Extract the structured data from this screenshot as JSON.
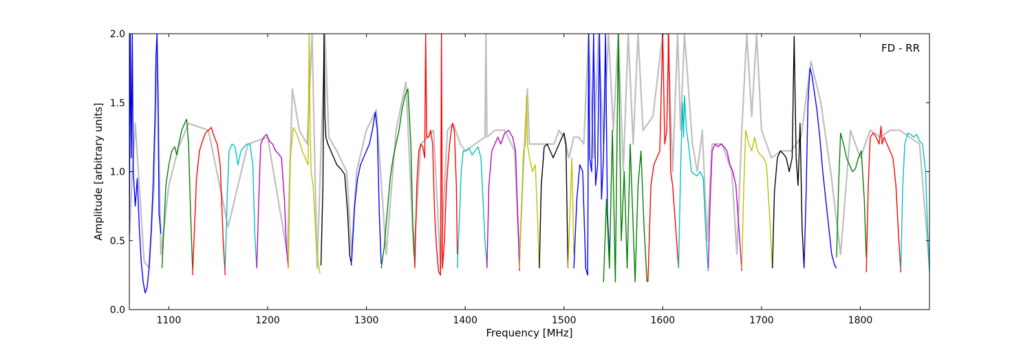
{
  "chart_data": {
    "type": "line",
    "title": "",
    "xlabel": "Frequency [MHz]",
    "ylabel": "Amplitude [arbitrary units]",
    "annotation": "FD - RR",
    "xlim": [
      1060,
      1870
    ],
    "ylim": [
      0.0,
      2.0
    ],
    "xticks": [
      1100,
      1200,
      1300,
      1400,
      1500,
      1600,
      1700,
      1800
    ],
    "xtick_labels": [
      "1100",
      "1200",
      "1300",
      "1400",
      "1500",
      "1600",
      "1700",
      "1800"
    ],
    "yticks": [
      0.0,
      0.5,
      1.0,
      1.5,
      2.0
    ],
    "ytick_labels": [
      "0.0",
      "0.5",
      "1.0",
      "1.5",
      "2.0"
    ],
    "grid": false,
    "legend": "none",
    "background_series": {
      "color": "#bfbfbf",
      "x": [
        1060,
        1063,
        1066,
        1070,
        1075,
        1080,
        1085,
        1088,
        1092,
        1100,
        1110,
        1120,
        1140,
        1160,
        1180,
        1200,
        1220,
        1225,
        1232,
        1240,
        1245,
        1250,
        1258,
        1262,
        1270,
        1280,
        1285,
        1290,
        1300,
        1310,
        1320,
        1330,
        1340,
        1348,
        1355,
        1362,
        1368,
        1375,
        1382,
        1388,
        1395,
        1400,
        1410,
        1420,
        1421,
        1422,
        1430,
        1440,
        1450,
        1455,
        1460,
        1463,
        1465,
        1470,
        1480,
        1490,
        1495,
        1500,
        1505,
        1510,
        1515,
        1520,
        1525,
        1530,
        1535,
        1540,
        1545,
        1550,
        1555,
        1560,
        1565,
        1570,
        1575,
        1580,
        1590,
        1600,
        1605,
        1610,
        1615,
        1618,
        1622,
        1626,
        1630,
        1635,
        1640,
        1645,
        1650,
        1660,
        1670,
        1675,
        1680,
        1685,
        1690,
        1695,
        1700,
        1710,
        1720,
        1730,
        1740,
        1750,
        1760,
        1770,
        1780,
        1790,
        1800,
        1810,
        1820,
        1830,
        1840,
        1850,
        1860,
        1870
      ],
      "y": [
        0.5,
        1.0,
        1.35,
        0.9,
        0.35,
        0.3,
        0.9,
        1.9,
        0.4,
        0.9,
        1.18,
        1.35,
        1.3,
        0.6,
        1.2,
        1.25,
        0.4,
        1.6,
        1.3,
        1.2,
        2.0,
        0.3,
        2.0,
        1.25,
        1.15,
        1.0,
        0.4,
        1.0,
        1.3,
        1.45,
        0.4,
        1.3,
        1.65,
        0.4,
        1.2,
        1.25,
        1.3,
        0.3,
        1.3,
        1.35,
        1.2,
        1.15,
        1.2,
        1.25,
        2.0,
        1.25,
        1.3,
        1.3,
        1.15,
        0.4,
        1.2,
        1.6,
        1.2,
        1.2,
        1.2,
        1.2,
        1.3,
        1.25,
        1.1,
        1.25,
        1.25,
        1.2,
        2.0,
        1.1,
        2.0,
        1.2,
        2.0,
        1.3,
        2.0,
        1.0,
        2.0,
        1.2,
        2.0,
        1.3,
        1.4,
        2.0,
        2.0,
        1.0,
        2.0,
        1.3,
        2.0,
        1.6,
        1.2,
        1.0,
        1.3,
        0.5,
        1.2,
        1.2,
        1.0,
        0.4,
        1.3,
        2.0,
        1.4,
        2.0,
        1.3,
        1.1,
        1.15,
        1.15,
        1.25,
        1.8,
        1.5,
        1.0,
        0.4,
        1.3,
        1.1,
        1.3,
        1.25,
        1.3,
        1.3,
        1.25,
        1.2,
        0.3
      ]
    },
    "series": [
      {
        "color": "#0000ff",
        "x": [
          1060,
          1061,
          1062,
          1063,
          1064,
          1066,
          1068,
          1070,
          1072,
          1074,
          1076,
          1078,
          1080,
          1082,
          1084,
          1086,
          1087,
          1088,
          1089,
          1090,
          1092
        ],
        "y": [
          0.55,
          2.0,
          1.1,
          2.0,
          1.0,
          0.75,
          0.95,
          0.6,
          0.35,
          0.2,
          0.12,
          0.16,
          0.3,
          0.55,
          0.9,
          1.4,
          1.85,
          2.0,
          1.6,
          0.7,
          0.55
        ]
      },
      {
        "color": "#008000",
        "x": [
          1093,
          1095,
          1097,
          1100,
          1103,
          1106,
          1108,
          1110,
          1113,
          1116,
          1118,
          1120,
          1122,
          1124
        ],
        "y": [
          0.3,
          0.6,
          0.9,
          1.05,
          1.15,
          1.18,
          1.12,
          1.2,
          1.3,
          1.35,
          1.38,
          1.2,
          0.7,
          0.3
        ]
      },
      {
        "color": "#ff0000",
        "x": [
          1124,
          1126,
          1128,
          1131,
          1134,
          1137,
          1140,
          1143,
          1146,
          1149,
          1152,
          1155,
          1157
        ],
        "y": [
          0.25,
          0.6,
          0.95,
          1.15,
          1.22,
          1.28,
          1.3,
          1.32,
          1.25,
          1.2,
          1.05,
          0.5,
          0.25
        ]
      },
      {
        "color": "#00bfbf",
        "x": [
          1157,
          1159,
          1161,
          1164,
          1167,
          1170,
          1173,
          1176,
          1179,
          1182,
          1185,
          1187,
          1189
        ],
        "y": [
          0.3,
          0.8,
          1.15,
          1.2,
          1.18,
          1.05,
          1.15,
          1.18,
          1.2,
          1.2,
          1.05,
          0.55,
          0.3
        ]
      },
      {
        "color": "#bf00bf",
        "x": [
          1189,
          1191,
          1193,
          1196,
          1199,
          1202,
          1205,
          1208,
          1211,
          1214,
          1217,
          1219,
          1221
        ],
        "y": [
          0.3,
          0.8,
          1.2,
          1.25,
          1.27,
          1.22,
          1.2,
          1.15,
          1.13,
          1.1,
          0.8,
          0.45,
          0.3
        ]
      },
      {
        "color": "#bfbf00",
        "x": [
          1221,
          1223,
          1226,
          1229,
          1232,
          1235,
          1238,
          1241,
          1242,
          1243,
          1244,
          1246,
          1249,
          1251,
          1253
        ],
        "y": [
          0.3,
          1.1,
          1.32,
          1.28,
          1.22,
          1.15,
          1.1,
          1.05,
          2.0,
          1.3,
          1.0,
          0.9,
          0.5,
          0.35,
          0.26
        ]
      },
      {
        "color": "#000000",
        "x": [
          1254,
          1256,
          1257,
          1258,
          1259,
          1261,
          1264,
          1267,
          1270,
          1274,
          1278,
          1281,
          1283,
          1285
        ],
        "y": [
          0.32,
          0.9,
          2.0,
          1.4,
          1.25,
          1.2,
          1.15,
          1.1,
          1.05,
          1.02,
          0.98,
          0.7,
          0.4,
          0.32
        ]
      },
      {
        "color": "#0000ff",
        "x": [
          1285,
          1288,
          1291,
          1294,
          1297,
          1300,
          1303,
          1306,
          1309,
          1311,
          1313,
          1315
        ],
        "y": [
          0.35,
          0.75,
          0.95,
          1.05,
          1.1,
          1.15,
          1.2,
          1.3,
          1.43,
          1.3,
          0.7,
          0.33
        ]
      },
      {
        "color": "#008000",
        "x": [
          1315,
          1318,
          1321,
          1324,
          1327,
          1330,
          1333,
          1336,
          1339,
          1342,
          1345,
          1347,
          1349
        ],
        "y": [
          0.3,
          0.45,
          0.7,
          0.95,
          1.1,
          1.2,
          1.3,
          1.45,
          1.55,
          1.6,
          1.2,
          0.6,
          0.32
        ]
      },
      {
        "color": "#ff0000",
        "x": [
          1349,
          1351,
          1353,
          1355,
          1357,
          1359,
          1360,
          1361,
          1363,
          1365,
          1367,
          1369,
          1371,
          1373,
          1375,
          1376,
          1377,
          1379,
          1381,
          1383,
          1385,
          1387,
          1389,
          1391,
          1392
        ],
        "y": [
          0.3,
          0.9,
          1.15,
          1.2,
          1.18,
          1.1,
          2.0,
          1.25,
          1.25,
          1.3,
          1.2,
          0.7,
          0.45,
          0.28,
          0.25,
          2.0,
          0.3,
          0.5,
          0.9,
          1.1,
          1.25,
          1.35,
          1.3,
          0.9,
          0.4
        ]
      },
      {
        "color": "#00bfbf",
        "x": [
          1392,
          1394,
          1396,
          1398,
          1401,
          1404,
          1407,
          1410,
          1413,
          1416,
          1418,
          1420,
          1422
        ],
        "y": [
          0.3,
          0.65,
          1.0,
          1.15,
          1.15,
          1.17,
          1.12,
          1.15,
          1.18,
          1.1,
          0.8,
          0.5,
          0.32
        ]
      },
      {
        "color": "#bf00bf",
        "x": [
          1422,
          1424,
          1427,
          1430,
          1433,
          1436,
          1440,
          1444,
          1448,
          1451,
          1453,
          1455
        ],
        "y": [
          0.3,
          0.9,
          1.15,
          1.2,
          1.25,
          1.2,
          1.28,
          1.3,
          1.25,
          1.15,
          0.7,
          0.28
        ]
      },
      {
        "color": "#bfbf00",
        "x": [
          1455,
          1457,
          1459,
          1461,
          1462,
          1463,
          1465,
          1468,
          1471,
          1473,
          1475
        ],
        "y": [
          0.3,
          0.75,
          1.15,
          1.2,
          1.55,
          1.2,
          1.1,
          1.0,
          1.05,
          0.7,
          0.3
        ]
      },
      {
        "color": "#000000",
        "x": [
          1475,
          1477,
          1480,
          1483,
          1486,
          1489,
          1492,
          1495,
          1498,
          1500,
          1502,
          1504
        ],
        "y": [
          0.3,
          0.9,
          1.18,
          1.2,
          1.15,
          1.1,
          1.15,
          1.2,
          1.25,
          1.28,
          1.2,
          0.3
        ]
      },
      {
        "color": "#bfbf00",
        "x": [
          1504,
          1506,
          1508,
          1510
        ],
        "y": [
          0.3,
          0.7,
          1.1,
          0.4
        ]
      },
      {
        "color": "#0000ff",
        "x": [
          1510,
          1513,
          1516,
          1519,
          1522,
          1524,
          1525,
          1526,
          1528,
          1530,
          1532,
          1534,
          1536,
          1538,
          1540,
          1542,
          1544,
          1546
        ],
        "y": [
          0.3,
          0.8,
          1.05,
          1.0,
          0.3,
          0.25,
          2.0,
          1.1,
          1.0,
          2.0,
          0.9,
          1.05,
          2.0,
          0.8,
          1.1,
          2.0,
          0.7,
          0.4
        ]
      },
      {
        "color": "#008000",
        "x": [
          1540,
          1543,
          1546,
          1549,
          1552,
          1555,
          1558,
          1561,
          1564,
          1567,
          1570,
          1572,
          1575,
          1578,
          1581,
          1584
        ],
        "y": [
          0.2,
          0.8,
          0.3,
          1.3,
          0.2,
          2.0,
          0.5,
          1.0,
          0.3,
          1.2,
          0.6,
          0.2,
          0.9,
          1.15,
          0.6,
          0.2
        ]
      },
      {
        "color": "#ff0000",
        "x": [
          1585,
          1588,
          1591,
          1594,
          1597,
          1600,
          1602,
          1604,
          1606,
          1608,
          1610,
          1613,
          1616
        ],
        "y": [
          0.2,
          0.9,
          1.05,
          1.1,
          1.15,
          2.0,
          1.2,
          1.3,
          2.0,
          1.0,
          0.9,
          0.6,
          0.3
        ]
      },
      {
        "color": "#00bfbf",
        "x": [
          1616,
          1618,
          1620,
          1621,
          1622,
          1624,
          1626,
          1629,
          1632,
          1635,
          1638,
          1641,
          1644,
          1646
        ],
        "y": [
          0.3,
          1.0,
          1.5,
          1.25,
          1.55,
          1.3,
          1.2,
          1.0,
          0.98,
          0.97,
          1.0,
          0.95,
          0.5,
          0.28
        ]
      },
      {
        "color": "#bf00bf",
        "x": [
          1646,
          1648,
          1650,
          1653,
          1656,
          1659,
          1662,
          1665,
          1668,
          1671,
          1674,
          1677,
          1680
        ],
        "y": [
          0.3,
          0.8,
          1.15,
          1.2,
          1.18,
          1.2,
          1.18,
          1.15,
          1.05,
          1.0,
          0.9,
          0.6,
          0.28
        ]
      },
      {
        "color": "#bfbf00",
        "x": [
          1680,
          1682,
          1684,
          1687,
          1690,
          1693,
          1696,
          1699,
          1702,
          1705,
          1708,
          1711
        ],
        "y": [
          0.3,
          0.9,
          1.3,
          1.2,
          1.15,
          1.25,
          1.15,
          1.12,
          1.1,
          1.05,
          0.7,
          0.3
        ]
      },
      {
        "color": "#000000",
        "x": [
          1711,
          1713,
          1716,
          1719,
          1722,
          1725,
          1728,
          1731,
          1733,
          1735,
          1737,
          1739,
          1741,
          1743
        ],
        "y": [
          0.3,
          0.85,
          1.1,
          1.15,
          1.13,
          1.1,
          1.0,
          1.1,
          1.98,
          1.1,
          0.9,
          1.35,
          0.6,
          0.3
        ]
      },
      {
        "color": "#0000ff",
        "x": [
          1743,
          1745,
          1747,
          1749,
          1751,
          1753,
          1756,
          1759,
          1762,
          1765,
          1768,
          1771,
          1774,
          1776
        ],
        "y": [
          0.3,
          0.8,
          1.5,
          1.75,
          1.7,
          1.6,
          1.45,
          1.25,
          1.0,
          0.8,
          0.6,
          0.4,
          0.32,
          0.3
        ]
      },
      {
        "color": "#008000",
        "x": [
          1776,
          1778,
          1780,
          1783,
          1786,
          1789,
          1792,
          1795,
          1798,
          1801,
          1804,
          1806
        ],
        "y": [
          0.38,
          0.9,
          1.28,
          1.2,
          1.1,
          1.05,
          1.0,
          1.02,
          1.1,
          1.15,
          0.8,
          0.38
        ]
      },
      {
        "color": "#ff0000",
        "x": [
          1806,
          1808,
          1810,
          1813,
          1816,
          1819,
          1821,
          1822,
          1824,
          1827,
          1830,
          1833,
          1836,
          1839,
          1841
        ],
        "y": [
          0.27,
          0.9,
          1.25,
          1.28,
          1.25,
          1.2,
          1.33,
          1.2,
          1.25,
          1.2,
          1.15,
          1.1,
          0.9,
          0.5,
          0.27
        ]
      },
      {
        "color": "#00bfbf",
        "x": [
          1841,
          1843,
          1845,
          1848,
          1851,
          1854,
          1857,
          1860,
          1863,
          1866,
          1868,
          1870
        ],
        "y": [
          0.3,
          0.9,
          1.2,
          1.28,
          1.27,
          1.25,
          1.27,
          1.22,
          1.2,
          1.0,
          0.6,
          0.27
        ]
      }
    ]
  }
}
